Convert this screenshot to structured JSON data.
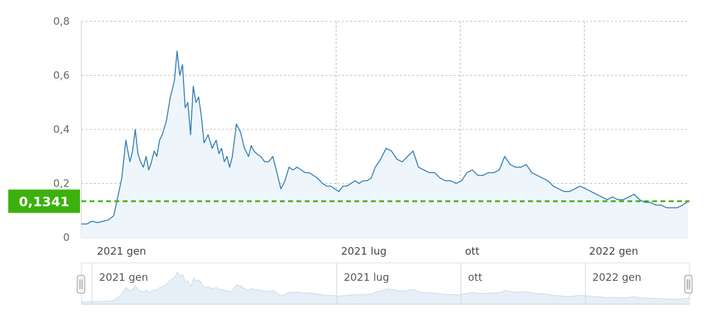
{
  "chart_data": {
    "type": "area",
    "y_ticks": [
      "0",
      "0,2",
      "0,4",
      "0,6",
      "0,8"
    ],
    "y_tick_values": [
      0,
      0.2,
      0.4,
      0.6,
      0.8
    ],
    "ylim": [
      0,
      0.8
    ],
    "xlim": [
      "2020-12-24",
      "2022-03-19"
    ],
    "x_ticks": [
      {
        "date": "2021-01-01",
        "label": "2021 gen"
      },
      {
        "date": "2021-07-01",
        "label": "2021 lug"
      },
      {
        "date": "2021-10-01",
        "label": "ott"
      },
      {
        "date": "2022-01-01",
        "label": "2022 gen"
      }
    ],
    "current_value": 0.1341,
    "current_value_label": "0,1341",
    "grid": true,
    "colors": {
      "line": "#2f7ab0",
      "fill": "#eef5fb",
      "current_line": "#3cb10e",
      "label_bg": "#3cb10e"
    },
    "series": [
      {
        "x": [
          "2020-12-24",
          "2020-12-28",
          "2021-01-01",
          "2021-01-05",
          "2021-01-09",
          "2021-01-13",
          "2021-01-17",
          "2021-01-20",
          "2021-01-23",
          "2021-01-26",
          "2021-01-29",
          "2021-01-31",
          "2021-02-02",
          "2021-02-04",
          "2021-02-06",
          "2021-02-08",
          "2021-02-10",
          "2021-02-12",
          "2021-02-14",
          "2021-02-16",
          "2021-02-18",
          "2021-02-20",
          "2021-02-22",
          "2021-02-25",
          "2021-02-28",
          "2021-03-03",
          "2021-03-05",
          "2021-03-07",
          "2021-03-09",
          "2021-03-11",
          "2021-03-13",
          "2021-03-15",
          "2021-03-17",
          "2021-03-19",
          "2021-03-21",
          "2021-03-23",
          "2021-03-25",
          "2021-03-28",
          "2021-03-31",
          "2021-04-03",
          "2021-04-05",
          "2021-04-07",
          "2021-04-09",
          "2021-04-11",
          "2021-04-13",
          "2021-04-15",
          "2021-04-18",
          "2021-04-21",
          "2021-04-24",
          "2021-04-27",
          "2021-04-29",
          "2021-05-01",
          "2021-05-03",
          "2021-05-06",
          "2021-05-09",
          "2021-05-12",
          "2021-05-15",
          "2021-05-18",
          "2021-05-21",
          "2021-05-24",
          "2021-05-27",
          "2021-05-30",
          "2021-06-02",
          "2021-06-05",
          "2021-06-08",
          "2021-06-11",
          "2021-06-14",
          "2021-06-17",
          "2021-06-19",
          "2021-06-21",
          "2021-06-24",
          "2021-06-27",
          "2021-06-30",
          "2021-07-03",
          "2021-07-06",
          "2021-07-09",
          "2021-07-12",
          "2021-07-15",
          "2021-07-18",
          "2021-07-21",
          "2021-07-24",
          "2021-07-27",
          "2021-07-30",
          "2021-08-03",
          "2021-08-07",
          "2021-08-11",
          "2021-08-15",
          "2021-08-19",
          "2021-08-23",
          "2021-08-27",
          "2021-08-31",
          "2021-09-04",
          "2021-09-08",
          "2021-09-12",
          "2021-09-16",
          "2021-09-20",
          "2021-09-24",
          "2021-09-28",
          "2021-10-02",
          "2021-10-06",
          "2021-10-10",
          "2021-10-14",
          "2021-10-18",
          "2021-10-22",
          "2021-10-26",
          "2021-10-30",
          "2021-11-03",
          "2021-11-07",
          "2021-11-11",
          "2021-11-15",
          "2021-11-19",
          "2021-11-23",
          "2021-11-27",
          "2021-12-01",
          "2021-12-05",
          "2021-12-09",
          "2021-12-13",
          "2021-12-17",
          "2021-12-21",
          "2021-12-25",
          "2021-12-29",
          "2022-01-02",
          "2022-01-06",
          "2022-01-10",
          "2022-01-14",
          "2022-01-18",
          "2022-01-22",
          "2022-01-26",
          "2022-01-30",
          "2022-02-03",
          "2022-02-07",
          "2022-02-11",
          "2022-02-15",
          "2022-02-19",
          "2022-02-23",
          "2022-02-27",
          "2022-03-03",
          "2022-03-07",
          "2022-03-11",
          "2022-03-15",
          "2022-03-18",
          "2022-03-19"
        ],
        "y": [
          0.05,
          0.05,
          0.06,
          0.055,
          0.06,
          0.065,
          0.08,
          0.15,
          0.22,
          0.36,
          0.28,
          0.32,
          0.4,
          0.31,
          0.28,
          0.26,
          0.3,
          0.25,
          0.28,
          0.32,
          0.3,
          0.36,
          0.38,
          0.43,
          0.52,
          0.58,
          0.69,
          0.6,
          0.64,
          0.48,
          0.5,
          0.38,
          0.56,
          0.5,
          0.52,
          0.45,
          0.35,
          0.38,
          0.33,
          0.36,
          0.31,
          0.33,
          0.28,
          0.3,
          0.26,
          0.3,
          0.42,
          0.39,
          0.33,
          0.3,
          0.34,
          0.32,
          0.31,
          0.3,
          0.28,
          0.28,
          0.3,
          0.24,
          0.18,
          0.21,
          0.26,
          0.25,
          0.26,
          0.25,
          0.24,
          0.24,
          0.23,
          0.22,
          0.21,
          0.2,
          0.19,
          0.19,
          0.18,
          0.17,
          0.19,
          0.19,
          0.2,
          0.21,
          0.2,
          0.21,
          0.21,
          0.22,
          0.26,
          0.29,
          0.33,
          0.32,
          0.29,
          0.28,
          0.3,
          0.32,
          0.26,
          0.25,
          0.24,
          0.24,
          0.22,
          0.21,
          0.21,
          0.2,
          0.21,
          0.24,
          0.25,
          0.23,
          0.23,
          0.24,
          0.24,
          0.25,
          0.3,
          0.27,
          0.26,
          0.26,
          0.27,
          0.24,
          0.23,
          0.22,
          0.21,
          0.19,
          0.18,
          0.17,
          0.17,
          0.18,
          0.19,
          0.18,
          0.17,
          0.16,
          0.15,
          0.14,
          0.15,
          0.14,
          0.14,
          0.15,
          0.16,
          0.14,
          0.13,
          0.13,
          0.12,
          0.12,
          0.11,
          0.11,
          0.11,
          0.12,
          0.13,
          0.1341
        ]
      }
    ]
  },
  "navigator": {
    "x_ticks": [
      "2021 gen",
      "2021 lug",
      "ott",
      "2022 gen"
    ]
  }
}
